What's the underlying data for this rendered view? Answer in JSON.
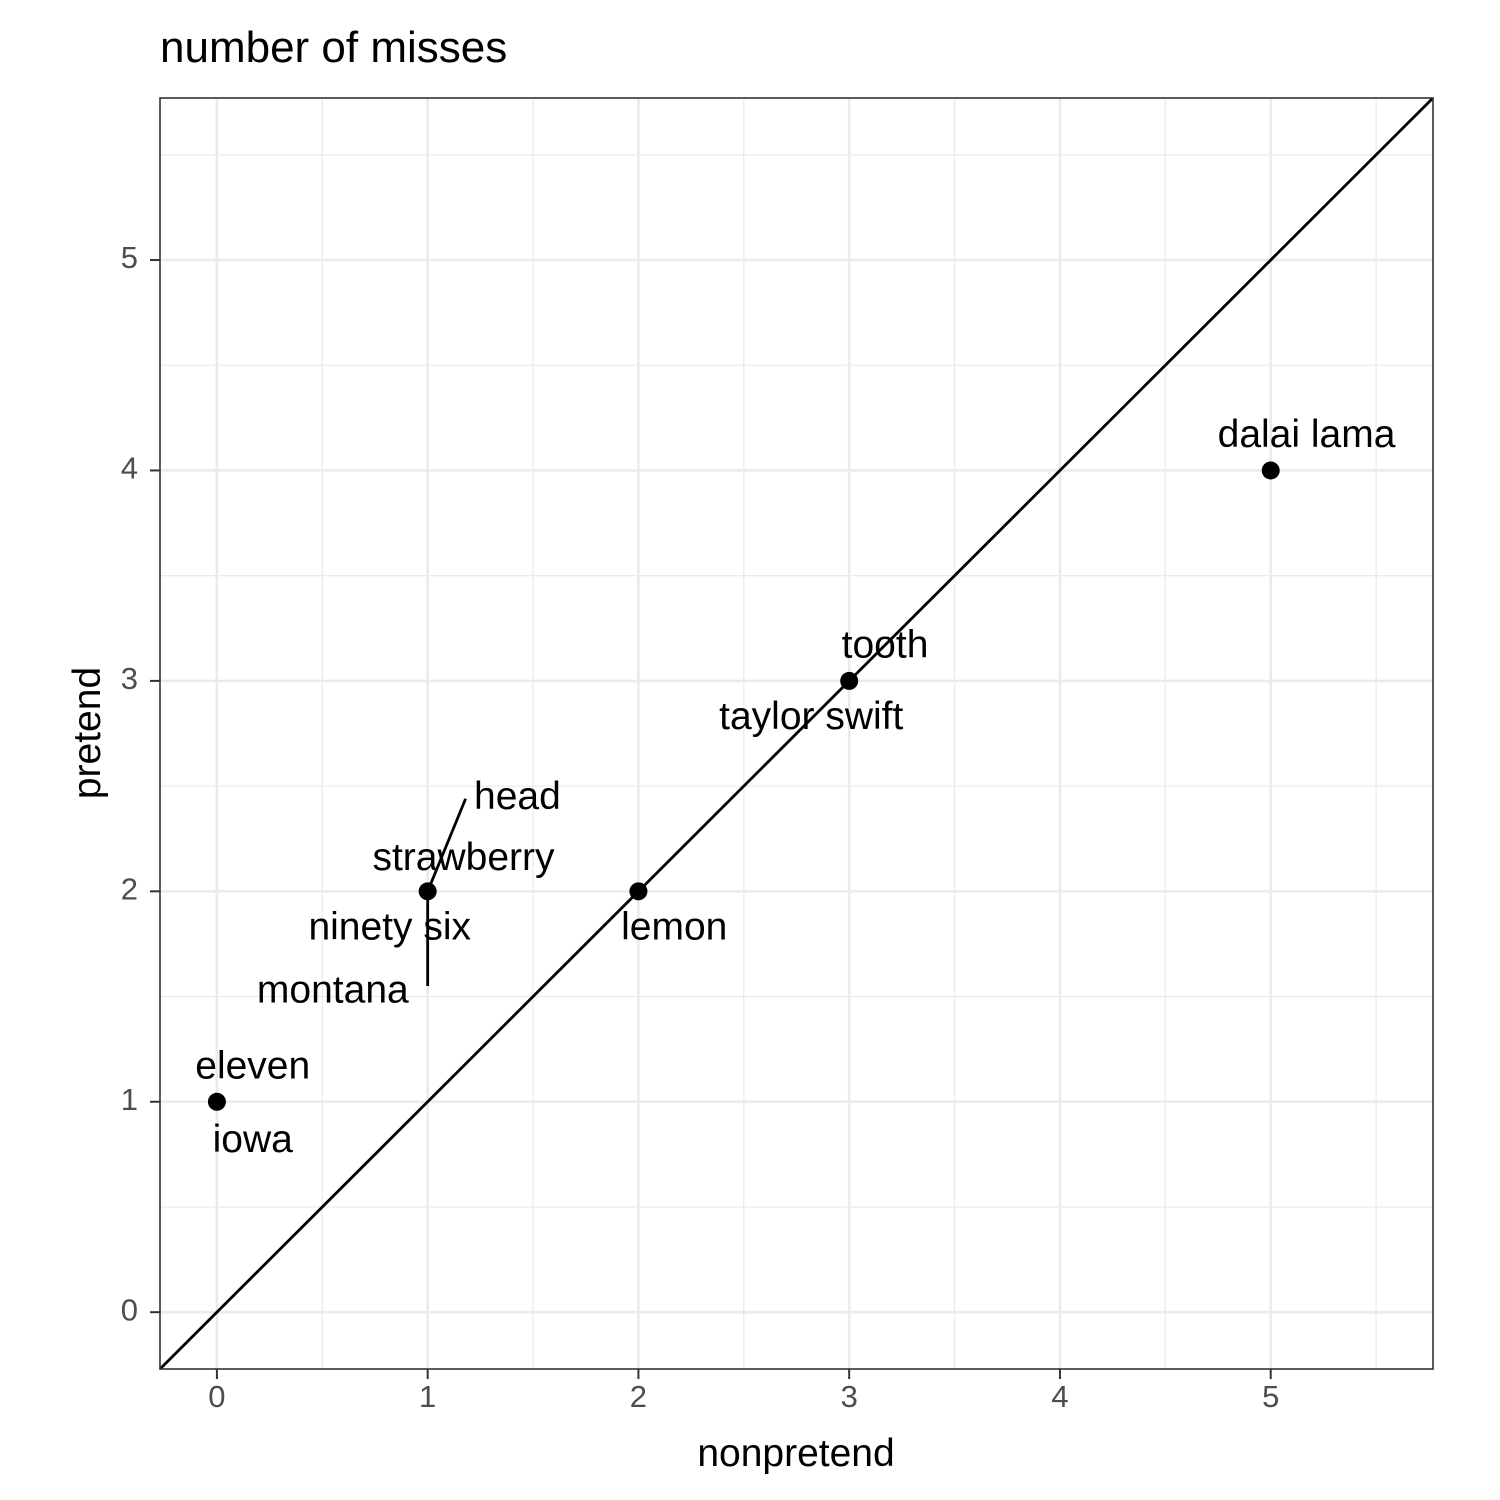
{
  "chart_data": {
    "type": "scatter",
    "title": "number of misses",
    "xlabel": "nonpretend",
    "ylabel": "pretend",
    "xlim": [
      -0.27,
      5.77
    ],
    "ylim": [
      -0.27,
      5.77
    ],
    "xticks": [
      0,
      1,
      2,
      3,
      4,
      5
    ],
    "yticks": [
      0,
      1,
      2,
      3,
      4,
      5
    ],
    "x_tick_labels": [
      "0",
      "1",
      "2",
      "3",
      "4",
      "5"
    ],
    "y_tick_labels": [
      "0",
      "1",
      "2",
      "3",
      "4",
      "5"
    ],
    "grid": true,
    "reference_line": {
      "type": "identity",
      "slope": 1,
      "intercept": 0
    },
    "points": [
      {
        "x": 0,
        "y": 1
      },
      {
        "x": 1,
        "y": 2
      },
      {
        "x": 2,
        "y": 2
      },
      {
        "x": 3,
        "y": 3
      },
      {
        "x": 5,
        "y": 4
      }
    ],
    "labels": [
      {
        "text": "eleven",
        "x": 0,
        "y": 1,
        "label_x": 0.17,
        "label_y": 1.16,
        "anchor": "middle"
      },
      {
        "text": "iowa",
        "x": 0,
        "y": 1,
        "label_x": 0.17,
        "label_y": 0.81,
        "anchor": "middle"
      },
      {
        "text": "head",
        "x": 1,
        "y": 2,
        "label_x": 1.22,
        "label_y": 2.44,
        "anchor": "start",
        "leader": true
      },
      {
        "text": "strawberry",
        "x": 1,
        "y": 2,
        "label_x": 1.17,
        "label_y": 2.15,
        "anchor": "middle"
      },
      {
        "text": "ninety six",
        "x": 1,
        "y": 2,
        "label_x": 0.82,
        "label_y": 1.82,
        "anchor": "middle"
      },
      {
        "text": "montana",
        "x": 1,
        "y": 2,
        "label_x": 0.55,
        "label_y": 1.52,
        "anchor": "middle",
        "leader": true,
        "leader_end": [
          1,
          1.55
        ]
      },
      {
        "text": "lemon",
        "x": 2,
        "y": 2,
        "label_x": 2.17,
        "label_y": 1.82,
        "anchor": "middle"
      },
      {
        "text": "tooth",
        "x": 3,
        "y": 3,
        "label_x": 3.17,
        "label_y": 3.16,
        "anchor": "middle"
      },
      {
        "text": "taylor swift",
        "x": 3,
        "y": 3,
        "label_x": 2.82,
        "label_y": 2.82,
        "anchor": "middle"
      },
      {
        "text": "dalai lama",
        "x": 5,
        "y": 4,
        "label_x": 5.17,
        "label_y": 4.16,
        "anchor": "middle"
      }
    ]
  }
}
